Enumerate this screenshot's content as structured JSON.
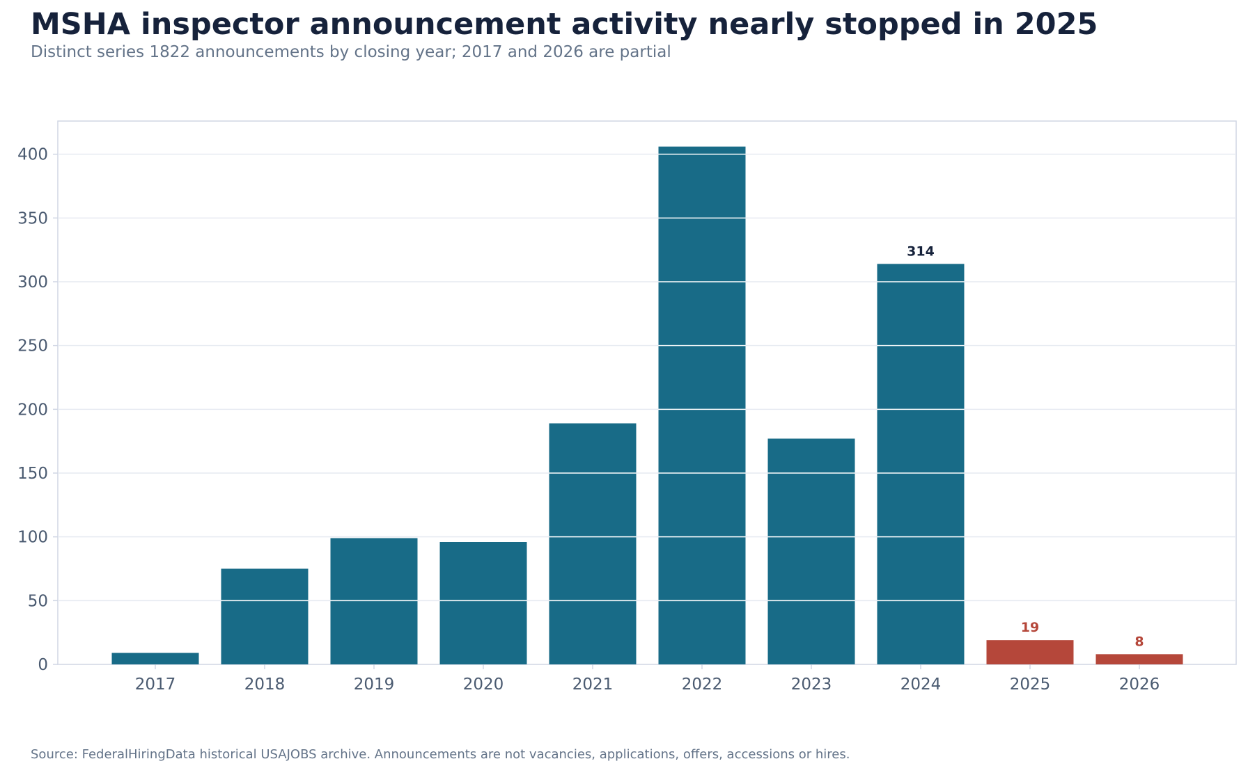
{
  "title": "MSHA inspector announcement activity nearly stopped in 2025",
  "subtitle": "Distinct series 1822 announcements by closing year; 2017 and 2026 are partial",
  "source": "Source: FederalHiringData historical USAJOBS archive. Announcements are not vacancies, applications, offers, accessions or hires.",
  "colors": {
    "primary": "#186b87",
    "highlight": "#b5473a",
    "label_dark": "#16223b",
    "grid": "#e6eaf1",
    "frame": "#d0d6e4",
    "tick_text": "#4a5a70"
  },
  "chart_data": {
    "type": "bar",
    "categories": [
      "2017",
      "2018",
      "2019",
      "2020",
      "2021",
      "2022",
      "2023",
      "2024",
      "2025",
      "2026"
    ],
    "values": [
      9,
      75,
      99,
      96,
      189,
      406,
      177,
      314,
      19,
      8
    ],
    "highlight_categories": [
      "2025",
      "2026"
    ],
    "data_labels": [
      {
        "category": "2024",
        "text": "314",
        "color": "#16223b"
      },
      {
        "category": "2025",
        "text": "19",
        "color": "#b5473a"
      },
      {
        "category": "2026",
        "text": "8",
        "color": "#b5473a"
      }
    ],
    "ylim": [
      0,
      426
    ],
    "yticks": [
      0,
      50,
      100,
      150,
      200,
      250,
      300,
      350,
      400
    ],
    "grid": true,
    "xlabel": "",
    "ylabel": ""
  }
}
